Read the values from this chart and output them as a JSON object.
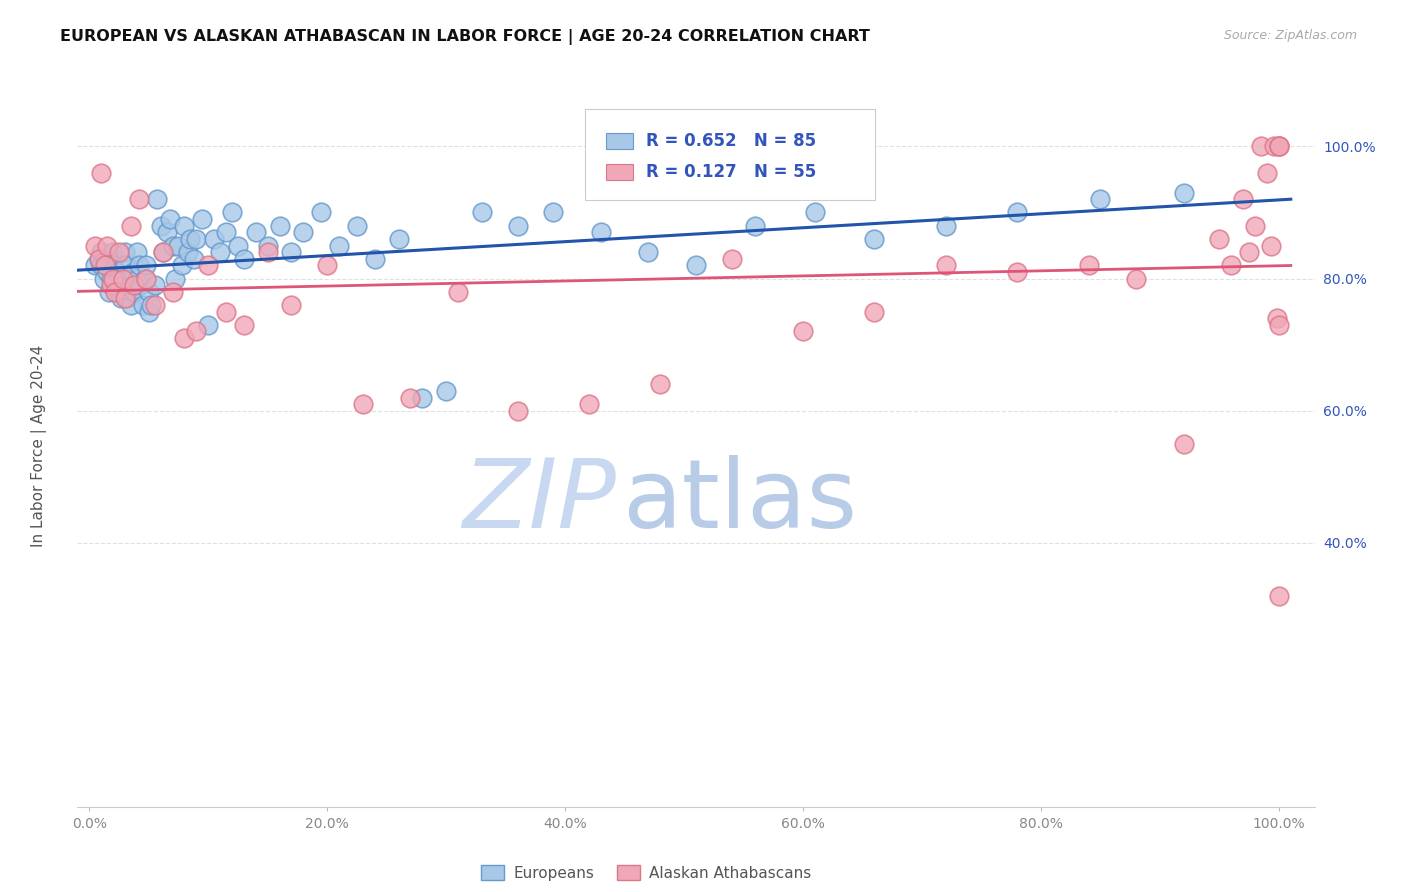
{
  "title": "EUROPEAN VS ALASKAN ATHABASCAN IN LABOR FORCE | AGE 20-24 CORRELATION CHART",
  "source": "Source: ZipAtlas.com",
  "ylabel": "In Labor Force | Age 20-24",
  "blue_r": 0.652,
  "blue_n": 85,
  "pink_r": 0.127,
  "pink_n": 55,
  "blue_fill": "#A8C8E8",
  "blue_edge": "#6699CC",
  "pink_fill": "#F0A8B8",
  "pink_edge": "#DD7788",
  "blue_line": "#2255AA",
  "pink_line": "#DD5577",
  "watermark_zip": "#C8D8F0",
  "watermark_atlas": "#B8CCE8",
  "bg": "#FFFFFF",
  "grid": "#DDDDDD",
  "legend_color": "#3355BB",
  "title_color": "#111111",
  "axis_color": "#999999",
  "right_tick_color": "#3355BB",
  "blue_x": [
    0.005,
    0.008,
    0.01,
    0.01,
    0.012,
    0.013,
    0.015,
    0.015,
    0.017,
    0.018,
    0.02,
    0.02,
    0.022,
    0.023,
    0.025,
    0.025,
    0.027,
    0.028,
    0.03,
    0.03,
    0.03,
    0.032,
    0.033,
    0.035,
    0.035,
    0.037,
    0.038,
    0.04,
    0.04,
    0.042,
    0.043,
    0.045,
    0.047,
    0.048,
    0.05,
    0.05,
    0.052,
    0.055,
    0.057,
    0.06,
    0.062,
    0.065,
    0.068,
    0.07,
    0.072,
    0.075,
    0.078,
    0.08,
    0.083,
    0.085,
    0.088,
    0.09,
    0.095,
    0.1,
    0.105,
    0.11,
    0.115,
    0.12,
    0.125,
    0.13,
    0.14,
    0.15,
    0.16,
    0.17,
    0.18,
    0.195,
    0.21,
    0.225,
    0.24,
    0.26,
    0.28,
    0.3,
    0.33,
    0.36,
    0.39,
    0.43,
    0.47,
    0.51,
    0.56,
    0.61,
    0.66,
    0.72,
    0.78,
    0.85,
    0.92
  ],
  "blue_y": [
    0.82,
    0.83,
    0.84,
    0.82,
    0.8,
    0.83,
    0.82,
    0.81,
    0.78,
    0.8,
    0.84,
    0.82,
    0.79,
    0.81,
    0.8,
    0.78,
    0.77,
    0.79,
    0.84,
    0.82,
    0.8,
    0.77,
    0.8,
    0.76,
    0.79,
    0.81,
    0.78,
    0.84,
    0.8,
    0.82,
    0.79,
    0.76,
    0.8,
    0.82,
    0.75,
    0.78,
    0.76,
    0.79,
    0.92,
    0.88,
    0.84,
    0.87,
    0.89,
    0.85,
    0.8,
    0.85,
    0.82,
    0.88,
    0.84,
    0.86,
    0.83,
    0.86,
    0.89,
    0.73,
    0.86,
    0.84,
    0.87,
    0.9,
    0.85,
    0.83,
    0.87,
    0.85,
    0.88,
    0.84,
    0.87,
    0.9,
    0.85,
    0.88,
    0.83,
    0.86,
    0.62,
    0.63,
    0.9,
    0.88,
    0.9,
    0.87,
    0.84,
    0.82,
    0.88,
    0.9,
    0.86,
    0.88,
    0.9,
    0.92,
    0.93
  ],
  "pink_x": [
    0.005,
    0.008,
    0.01,
    0.013,
    0.015,
    0.018,
    0.02,
    0.022,
    0.025,
    0.028,
    0.03,
    0.035,
    0.038,
    0.042,
    0.048,
    0.055,
    0.062,
    0.07,
    0.08,
    0.09,
    0.1,
    0.115,
    0.13,
    0.15,
    0.17,
    0.2,
    0.23,
    0.27,
    0.31,
    0.36,
    0.42,
    0.48,
    0.54,
    0.6,
    0.66,
    0.72,
    0.78,
    0.84,
    0.88,
    0.92,
    0.95,
    0.96,
    0.97,
    0.975,
    0.98,
    0.985,
    0.99,
    0.993,
    0.996,
    0.998,
    1.0,
    1.0,
    1.0,
    1.0,
    1.0
  ],
  "pink_y": [
    0.85,
    0.83,
    0.96,
    0.82,
    0.85,
    0.79,
    0.8,
    0.78,
    0.84,
    0.8,
    0.77,
    0.88,
    0.79,
    0.92,
    0.8,
    0.76,
    0.84,
    0.78,
    0.71,
    0.72,
    0.82,
    0.75,
    0.73,
    0.84,
    0.76,
    0.82,
    0.61,
    0.62,
    0.78,
    0.6,
    0.61,
    0.64,
    0.83,
    0.72,
    0.75,
    0.82,
    0.81,
    0.82,
    0.8,
    0.55,
    0.86,
    0.82,
    0.92,
    0.84,
    0.88,
    1.0,
    0.96,
    0.85,
    1.0,
    0.74,
    1.0,
    1.0,
    0.73,
    1.0,
    0.32
  ]
}
